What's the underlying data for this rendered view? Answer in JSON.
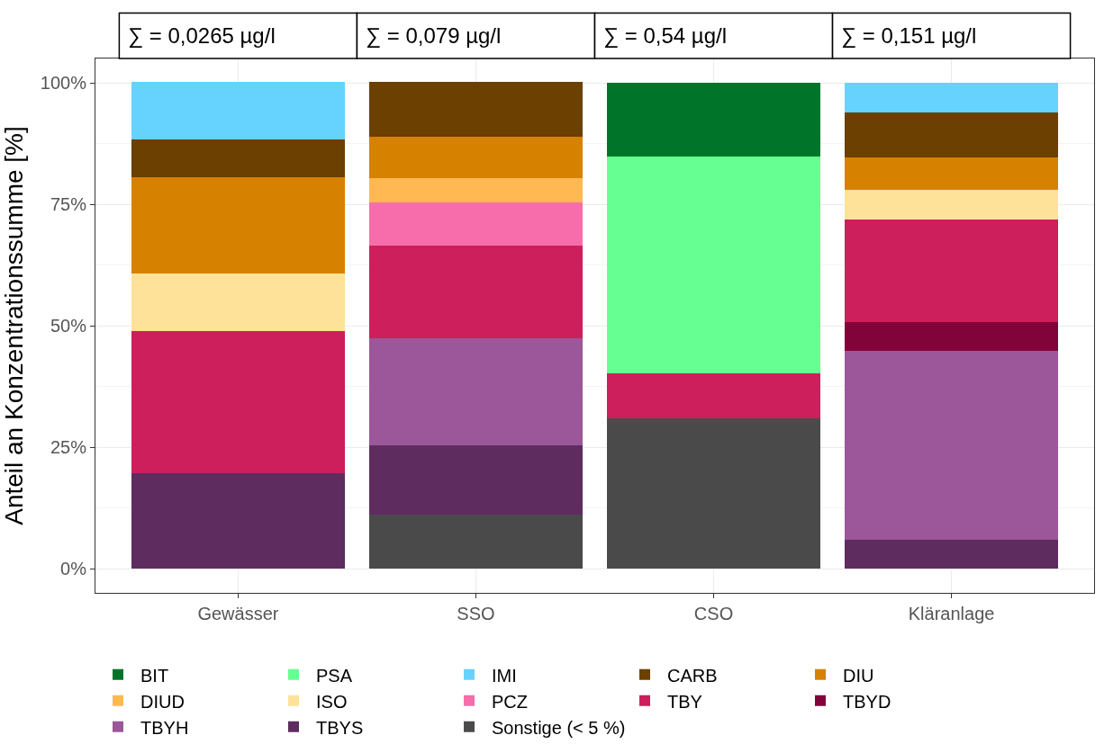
{
  "chart_data": {
    "type": "bar",
    "stacked": true,
    "ylabel": "Anteil an Konzentrationssumme [%]",
    "categories": [
      "Gewässer",
      "SSO",
      "CSO",
      "Kläranlage"
    ],
    "series": [
      {
        "name": "Sonstige (< 5 %)",
        "color": "#4a4a4b",
        "values": [
          null,
          11.2,
          30.9,
          null
        ]
      },
      {
        "name": "TBYS",
        "color": "#5e2c5e",
        "values": [
          19.6,
          14.2,
          null,
          5.9
        ]
      },
      {
        "name": "TBYH",
        "color": "#9c579a",
        "values": [
          null,
          22.0,
          null,
          39.0
        ]
      },
      {
        "name": "TBYD",
        "color": "#82033a",
        "values": [
          null,
          null,
          null,
          5.8
        ]
      },
      {
        "name": "TBY",
        "color": "#cc1f5c",
        "values": [
          29.2,
          19.1,
          9.3,
          21.2
        ]
      },
      {
        "name": "PCZ",
        "color": "#f76dab",
        "values": [
          null,
          8.9,
          null,
          null
        ]
      },
      {
        "name": "ISO",
        "color": "#ffe299",
        "values": [
          11.9,
          null,
          null,
          6.1
        ]
      },
      {
        "name": "DIUD",
        "color": "#ffb852",
        "values": [
          null,
          4.9,
          null,
          null
        ]
      },
      {
        "name": "DIU",
        "color": "#d68200",
        "values": [
          19.8,
          8.6,
          null,
          6.6
        ]
      },
      {
        "name": "CARB",
        "color": "#6b4000",
        "values": [
          7.9,
          11.2,
          null,
          9.3
        ]
      },
      {
        "name": "IMI",
        "color": "#66d3ff",
        "values": [
          11.7,
          null,
          null,
          6.1
        ]
      },
      {
        "name": "PSA",
        "color": "#66ff91",
        "values": [
          null,
          null,
          44.6,
          null
        ]
      },
      {
        "name": "BIT",
        "color": "#00752a",
        "values": [
          null,
          null,
          15.2,
          null
        ]
      }
    ],
    "ylim": [
      -5,
      105
    ],
    "yticks": [
      {
        "value": 0,
        "label": "0%"
      },
      {
        "value": 25,
        "label": "25%"
      },
      {
        "value": 50,
        "label": "50%"
      },
      {
        "value": 75,
        "label": "75%"
      },
      {
        "value": 100,
        "label": "100%"
      }
    ],
    "grid": true,
    "legend": "bottom",
    "annotations": [
      "∑ = 0,0265 µg/l",
      "∑ = 0,079 µg/l",
      "∑ = 0,54 µg/l",
      "∑ = 0,151 µg/l"
    ]
  }
}
